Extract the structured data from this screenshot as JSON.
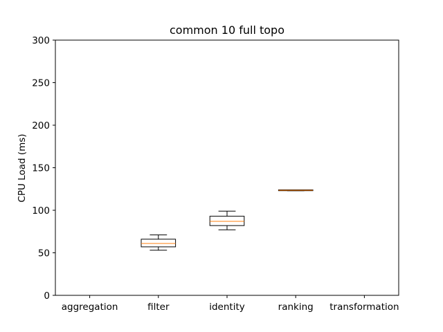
{
  "chart_data": {
    "type": "box",
    "title": "common 10 full topo",
    "xlabel": "",
    "ylabel": "CPU Load (ms)",
    "ylim": [
      0,
      300
    ],
    "yticks": [
      0,
      50,
      100,
      150,
      200,
      250,
      300
    ],
    "grid": false,
    "categories": [
      "aggregation",
      "filter",
      "identity",
      "ranking",
      "transformation"
    ],
    "boxes": [
      null,
      {
        "whisker_low": 53,
        "q1": 57,
        "median": 61,
        "q3": 66,
        "whisker_high": 71
      },
      {
        "whisker_low": 77,
        "q1": 82,
        "median": 87,
        "q3": 93,
        "whisker_high": 99
      },
      {
        "whisker_low": 123,
        "q1": 123,
        "median": 123.5,
        "q3": 124,
        "whisker_high": 124
      },
      null
    ],
    "colors": {
      "box": "#000000",
      "median": "#ff7f0e",
      "axes": "#000000"
    }
  }
}
